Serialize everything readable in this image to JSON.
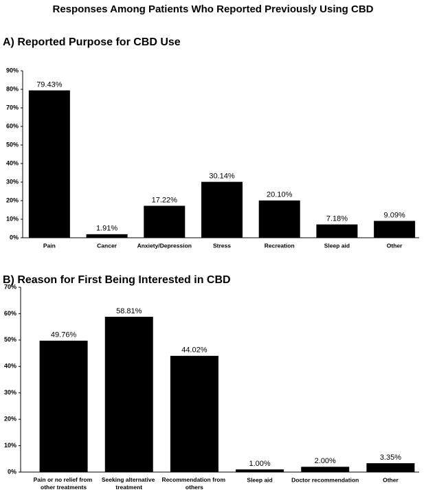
{
  "title": "Responses Among Patients Who Reported Previously Using CBD",
  "chart_data": [
    {
      "type": "bar",
      "title": "A) Reported Purpose for CBD Use",
      "categories": [
        "Pain",
        "Cancer",
        "Anxiety/Depression",
        "Stress",
        "Recreation",
        "Sleep aid",
        "Other"
      ],
      "values": [
        79.43,
        1.91,
        17.22,
        30.14,
        20.1,
        7.18,
        9.09
      ],
      "value_labels": [
        "79.43%",
        "1.91%",
        "17.22%",
        "30.14%",
        "20.10%",
        "7.18%",
        "9.09%"
      ],
      "color": "#000000",
      "ylim": [
        0,
        90
      ],
      "yticks": [
        {
          "value": 0,
          "label": "0%"
        },
        {
          "value": 10,
          "label": "10%"
        },
        {
          "value": 20,
          "label": "20%"
        },
        {
          "value": 30,
          "label": "30%"
        },
        {
          "value": 40,
          "label": "40%"
        },
        {
          "value": 50,
          "label": "50%"
        },
        {
          "value": 60,
          "label": "60%"
        },
        {
          "value": 70,
          "label": "70%"
        },
        {
          "value": 80,
          "label": "80%"
        },
        {
          "value": 90,
          "label": "90%"
        }
      ],
      "grid": false
    },
    {
      "type": "bar",
      "title": "B) Reason for First Being Interested in CBD",
      "categories": [
        "Pain or no relief from other treatments",
        "Seeking alternative treatment",
        "Recommendation from others",
        "Sleep aid",
        "Doctor recommendation",
        "Other"
      ],
      "values": [
        49.76,
        58.81,
        44.02,
        1.0,
        2.0,
        3.35
      ],
      "value_labels": [
        "49.76%",
        "58.81%",
        "44.02%",
        "1.00%",
        "2.00%",
        "3.35%"
      ],
      "color": "#000000",
      "ylim": [
        0,
        70
      ],
      "yticks": [
        {
          "value": 0,
          "label": "0%"
        },
        {
          "value": 10,
          "label": "10%"
        },
        {
          "value": 20,
          "label": "20%"
        },
        {
          "value": 30,
          "label": "30%"
        },
        {
          "value": 40,
          "label": "40%"
        },
        {
          "value": 50,
          "label": "50%"
        },
        {
          "value": 60,
          "label": "60%"
        },
        {
          "value": 70,
          "label": "70%"
        }
      ],
      "grid": false
    }
  ]
}
